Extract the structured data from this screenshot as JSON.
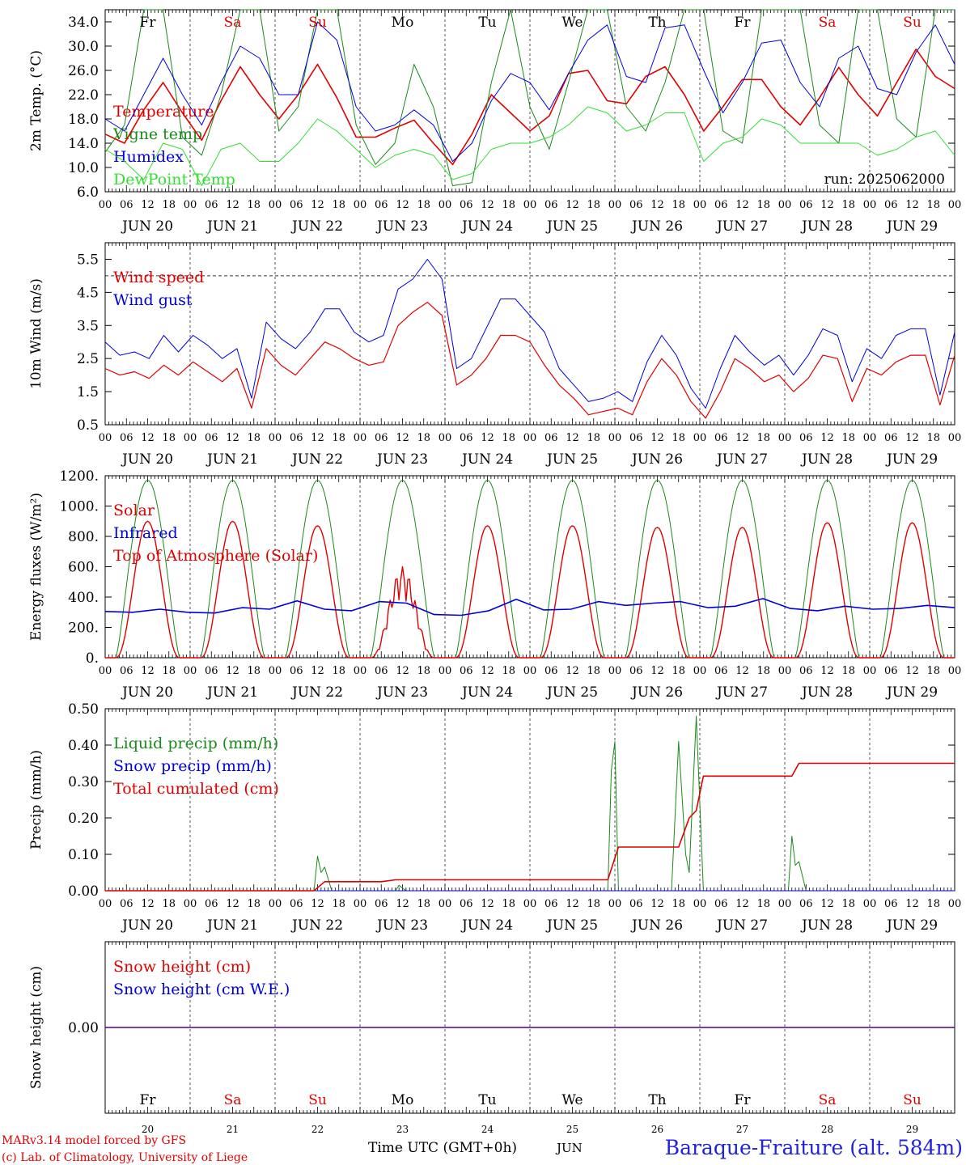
{
  "colors": {
    "red": "#e00000",
    "blue": "#0000dd",
    "green": "#1a8a1a",
    "lightgreen": "#33dd33",
    "axis": "#000000",
    "grid": "#555555",
    "footer_blue": "#2222dd"
  },
  "hour_labels": [
    "00",
    "06",
    "12",
    "18"
  ],
  "dates": [
    "JUN 20",
    "JUN 21",
    "JUN 22",
    "JUN 23",
    "JUN 24",
    "JUN 25",
    "JUN 26",
    "JUN 27",
    "JUN 28",
    "JUN 29"
  ],
  "weekdays": [
    {
      "label": "Fr",
      "weekend": false
    },
    {
      "label": "Sa",
      "weekend": true
    },
    {
      "label": "Su",
      "weekend": true
    },
    {
      "label": "Mo",
      "weekend": false
    },
    {
      "label": "Tu",
      "weekend": false
    },
    {
      "label": "We",
      "weekend": false
    },
    {
      "label": "Th",
      "weekend": false
    },
    {
      "label": "Fr",
      "weekend": false
    },
    {
      "label": "Sa",
      "weekend": true
    },
    {
      "label": "Su",
      "weekend": true
    }
  ],
  "day_numbers": [
    "20",
    "21",
    "22",
    "23",
    "24",
    "25",
    "26",
    "27",
    "28",
    "29"
  ],
  "run_label": "run: 2025062000",
  "footer": {
    "model": "MARv3.14 model forced by GFS",
    "credit": "(c) Lab. of Climatology, University of Liege",
    "time_axis": "Time UTC (GMT+0h)",
    "month": "JUN",
    "station": "Baraque-Fraiture (alt. 584m)"
  },
  "chart_data": [
    {
      "type": "line",
      "ylabel": "2m Temp. (°C)",
      "ylim": [
        6,
        36
      ],
      "yticks": [
        "6.0",
        "10.0",
        "14.0",
        "18.0",
        "22.0",
        "26.0",
        "30.0",
        "34.0"
      ],
      "ytick_values": [
        6,
        10,
        14,
        18,
        22,
        26,
        30,
        34
      ],
      "x_start": "2025-06-20 00:00",
      "x_step_hours": 6,
      "legend": [
        "Temperature",
        "Vigne temp",
        "Humidex",
        "DewPoint Temp"
      ],
      "series": [
        {
          "name": "Temperature",
          "color": "red",
          "width": 1.6,
          "values": [
            15.5,
            14,
            19.5,
            24,
            19,
            14.5,
            21,
            26.6,
            22,
            18,
            22,
            27,
            21.5,
            15,
            15,
            16.5,
            17.8,
            14,
            10.5,
            15.5,
            22,
            19,
            16,
            18.5,
            25.5,
            26,
            21,
            20.5,
            25,
            26.6,
            22,
            16,
            20,
            24.5,
            24.5,
            20,
            17,
            21.5,
            26.5,
            22,
            18.5,
            24,
            29.5,
            25,
            23
          ]
        },
        {
          "name": "Vigne temp",
          "color": "green",
          "width": 1,
          "values": [
            12.5,
            17,
            36,
            36,
            15,
            12,
            22,
            36,
            36,
            16,
            20,
            36,
            36,
            17,
            10.5,
            14,
            27,
            20,
            7,
            7.5,
            24,
            36,
            20,
            13,
            24,
            36,
            36,
            20,
            16,
            24,
            36,
            36,
            16,
            14,
            36,
            36,
            36,
            17,
            14,
            36,
            36,
            18,
            15,
            36,
            36
          ]
        },
        {
          "name": "Humidex",
          "color": "blue",
          "width": 1,
          "values": [
            18,
            16,
            22,
            28,
            22,
            17,
            24,
            30,
            28,
            22,
            22,
            34,
            31,
            20,
            16,
            17,
            19.5,
            17,
            11,
            14,
            21,
            25.5,
            24,
            19.5,
            25.5,
            31,
            33.5,
            25,
            24,
            33,
            33.5,
            26,
            19,
            24,
            30.5,
            31,
            24,
            20,
            28,
            30,
            23,
            22,
            29,
            33.5,
            27
          ]
        },
        {
          "name": "DewPoint Temp",
          "color": "lightgreen",
          "width": 1,
          "values": [
            13,
            11,
            8,
            14,
            13,
            7,
            13,
            14,
            11,
            11,
            14,
            18,
            16,
            13,
            10,
            12,
            13,
            12,
            8,
            9,
            13,
            14,
            14,
            15,
            17,
            20,
            19,
            16,
            17,
            19,
            19,
            11,
            14,
            15,
            18,
            17,
            14,
            14,
            14,
            14,
            12,
            13,
            15,
            16,
            12
          ]
        }
      ]
    },
    {
      "type": "line",
      "ylabel": "10m Wind (m/s)",
      "ylim": [
        0.5,
        6
      ],
      "yticks": [
        "0.5",
        "1.5",
        "2.5",
        "3.5",
        "4.5",
        "5.5"
      ],
      "ytick_values": [
        0.5,
        1.5,
        2.5,
        3.5,
        4.5,
        5.5
      ],
      "reference_line": 5,
      "x_start": "2025-06-20 00:00",
      "x_step_hours": 6,
      "legend": [
        "Wind speed",
        "Wind gust"
      ],
      "series": [
        {
          "name": "Wind speed",
          "color": "red",
          "width": 1.2,
          "values": [
            2.2,
            2.0,
            2.1,
            1.9,
            2.3,
            2.0,
            2.4,
            2.1,
            1.8,
            2.2,
            1.0,
            2.8,
            2.3,
            2.0,
            2.5,
            3.0,
            2.8,
            2.5,
            2.3,
            2.4,
            3.5,
            3.9,
            4.2,
            3.8,
            1.7,
            2.0,
            2.5,
            3.2,
            3.2,
            3.0,
            2.3,
            1.7,
            1.3,
            0.8,
            0.9,
            1.0,
            0.8,
            1.8,
            2.5,
            2.0,
            1.2,
            0.7,
            1.5,
            2.5,
            2.2,
            1.8,
            2.0,
            1.5,
            1.9,
            2.6,
            2.5,
            1.2,
            2.2,
            2.0,
            2.4,
            2.6,
            2.6,
            1.1,
            2.6
          ]
        },
        {
          "name": "Wind gust",
          "color": "blue",
          "width": 1,
          "values": [
            3.0,
            2.6,
            2.7,
            2.5,
            3.2,
            2.7,
            3.2,
            2.9,
            2.5,
            2.8,
            1.3,
            3.6,
            3.1,
            2.8,
            3.3,
            4.0,
            4.0,
            3.3,
            3.0,
            3.2,
            4.6,
            4.9,
            5.5,
            4.9,
            2.2,
            2.5,
            3.4,
            4.3,
            4.3,
            3.8,
            3.3,
            2.2,
            1.7,
            1.2,
            1.3,
            1.5,
            1.2,
            2.4,
            3.2,
            2.6,
            1.6,
            1.0,
            2.2,
            3.2,
            2.7,
            2.3,
            2.6,
            2.0,
            2.6,
            3.4,
            3.2,
            1.8,
            2.8,
            2.5,
            3.2,
            3.4,
            3.4,
            1.4,
            3.3
          ]
        }
      ]
    },
    {
      "type": "line",
      "ylabel": "Energy fluxes (W/m²)",
      "ylim": [
        0,
        1200
      ],
      "yticks": [
        "0.",
        "200.",
        "400.",
        "600.",
        "800.",
        "1000.",
        "1200."
      ],
      "ytick_values": [
        0,
        200,
        400,
        600,
        800,
        1000,
        1200
      ],
      "x_start": "2025-06-20 00:00",
      "x_step_hours": 24,
      "legend": [
        "Solar",
        "Infrared",
        "Top of Atmosphere (Solar)"
      ],
      "diurnal": {
        "sunrise_hour": 3,
        "sunset_hour": 21,
        "noon_hour": 12,
        "toa_peak": 1170,
        "solar_peaks": [
          900,
          900,
          870,
          600,
          870,
          870,
          860,
          860,
          890,
          890
        ]
      },
      "series": [
        {
          "name": "Infrared",
          "color": "blue",
          "width": 1.6,
          "values": [
            305,
            300,
            320,
            300,
            295,
            330,
            320,
            375,
            320,
            310,
            370,
            360,
            285,
            280,
            310,
            385,
            315,
            320,
            370,
            345,
            360,
            370,
            330,
            340,
            390,
            325,
            310,
            340,
            320,
            325,
            345,
            330
          ]
        }
      ]
    },
    {
      "type": "line",
      "ylabel": "Precip (mm/h)",
      "ylim": [
        0,
        0.5
      ],
      "yticks": [
        "0.00",
        "0.10",
        "0.20",
        "0.30",
        "0.40",
        "0.50"
      ],
      "ytick_values": [
        0,
        0.1,
        0.2,
        0.3,
        0.4,
        0.5
      ],
      "x_start": "2025-06-20 00:00",
      "legend": [
        "Liquid precip (mm/h)",
        "Snow precip (mm/h)",
        "Total cumulated (cm)"
      ],
      "series": [
        {
          "name": "Liquid precip (mm/h)",
          "color": "green",
          "width": 1,
          "points": [
            [
              0,
              0
            ],
            [
              59,
              0
            ],
            [
              60,
              0.095
            ],
            [
              61,
              0.05
            ],
            [
              62,
              0.065
            ],
            [
              64,
              0
            ],
            [
              82,
              0
            ],
            [
              83,
              0.015
            ],
            [
              85,
              0
            ],
            [
              142,
              0
            ],
            [
              143,
              0.33
            ],
            [
              144,
              0.41
            ],
            [
              145,
              0
            ],
            [
              148,
              0
            ],
            [
              160,
              0
            ],
            [
              162,
              0.41
            ],
            [
              164,
              0.1
            ],
            [
              165,
              0.05
            ],
            [
              167,
              0.48
            ],
            [
              169,
              0
            ],
            [
              180,
              0
            ],
            [
              193,
              0
            ],
            [
              194,
              0.15
            ],
            [
              195,
              0.07
            ],
            [
              196,
              0.08
            ],
            [
              198,
              0
            ],
            [
              240,
              0
            ]
          ]
        },
        {
          "name": "Snow precip (mm/h)",
          "color": "blue",
          "width": 1,
          "points": [
            [
              0,
              0
            ],
            [
              240,
              0
            ]
          ]
        },
        {
          "name": "Total cumulated (cm)",
          "color": "red",
          "width": 1.6,
          "points": [
            [
              0,
              0
            ],
            [
              59,
              0
            ],
            [
              62,
              0.025
            ],
            [
              78,
              0.025
            ],
            [
              82,
              0.03
            ],
            [
              142,
              0.03
            ],
            [
              145,
              0.12
            ],
            [
              162,
              0.12
            ],
            [
              165,
              0.2
            ],
            [
              167,
              0.22
            ],
            [
              169,
              0.315
            ],
            [
              194,
              0.315
            ],
            [
              196,
              0.35
            ],
            [
              240,
              0.35
            ]
          ]
        }
      ]
    },
    {
      "type": "line",
      "ylabel": "Snow height (cm)",
      "ylim": [
        -1,
        1
      ],
      "yticks": [
        "0.00"
      ],
      "ytick_values": [
        0
      ],
      "x_start": "2025-06-20 00:00",
      "legend": [
        "Snow height (cm)",
        "Snow height (cm W.E.)"
      ],
      "series": [
        {
          "name": "Snow height (cm)",
          "color": "red",
          "width": 1.6,
          "points": [
            [
              0,
              0
            ],
            [
              240,
              0
            ]
          ]
        },
        {
          "name": "Snow height (cm W.E.)",
          "color": "blue",
          "width": 1,
          "points": [
            [
              0,
              0
            ],
            [
              240,
              0
            ]
          ]
        }
      ]
    }
  ]
}
